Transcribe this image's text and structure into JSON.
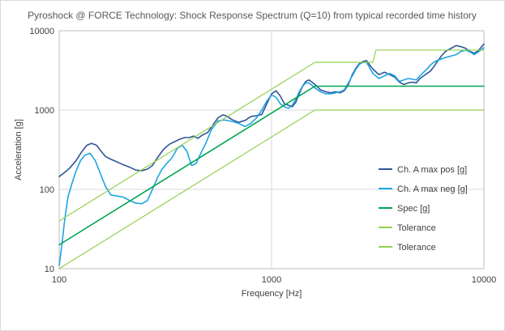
{
  "chart_data": {
    "type": "line",
    "title": "Pyroshock @ FORCE Technology: Shock Response Spectrum (Q=10) from typical recorded time history",
    "xlabel": "Frequency [Hz]",
    "ylabel": "Acceleration [g]",
    "x_scale": "log",
    "y_scale": "log",
    "xlim": [
      100,
      10000
    ],
    "ylim": [
      10,
      10000
    ],
    "x_ticks": [
      "100",
      "1000",
      "10000"
    ],
    "y_ticks": [
      "10",
      "100",
      "1000",
      "10000"
    ],
    "grid": true,
    "legend_position": "right-center",
    "series": [
      {
        "name": "Ch. A max pos [g]",
        "color": "#2f5597",
        "points": [
          [
            100,
            145
          ],
          [
            105,
            160
          ],
          [
            112,
            185
          ],
          [
            120,
            230
          ],
          [
            128,
            300
          ],
          [
            135,
            360
          ],
          [
            142,
            380
          ],
          [
            150,
            360
          ],
          [
            158,
            300
          ],
          [
            165,
            260
          ],
          [
            175,
            240
          ],
          [
            185,
            225
          ],
          [
            200,
            205
          ],
          [
            215,
            190
          ],
          [
            230,
            175
          ],
          [
            245,
            172
          ],
          [
            260,
            180
          ],
          [
            275,
            200
          ],
          [
            290,
            250
          ],
          [
            310,
            320
          ],
          [
            330,
            370
          ],
          [
            350,
            400
          ],
          [
            370,
            430
          ],
          [
            390,
            450
          ],
          [
            410,
            450
          ],
          [
            430,
            470
          ],
          [
            450,
            440
          ],
          [
            470,
            480
          ],
          [
            500,
            520
          ],
          [
            530,
            650
          ],
          [
            560,
            800
          ],
          [
            590,
            870
          ],
          [
            620,
            830
          ],
          [
            650,
            760
          ],
          [
            700,
            700
          ],
          [
            750,
            740
          ],
          [
            800,
            830
          ],
          [
            850,
            850
          ],
          [
            900,
            880
          ],
          [
            950,
            1200
          ],
          [
            1000,
            1600
          ],
          [
            1050,
            1750
          ],
          [
            1100,
            1500
          ],
          [
            1150,
            1200
          ],
          [
            1200,
            1150
          ],
          [
            1250,
            1100
          ],
          [
            1300,
            1250
          ],
          [
            1350,
            1600
          ],
          [
            1400,
            2000
          ],
          [
            1450,
            2300
          ],
          [
            1500,
            2400
          ],
          [
            1550,
            2250
          ],
          [
            1600,
            2100
          ],
          [
            1700,
            1800
          ],
          [
            1800,
            1700
          ],
          [
            1900,
            1650
          ],
          [
            2000,
            1700
          ],
          [
            2100,
            1650
          ],
          [
            2200,
            1750
          ],
          [
            2300,
            2100
          ],
          [
            2400,
            2800
          ],
          [
            2500,
            3400
          ],
          [
            2600,
            3900
          ],
          [
            2700,
            4100
          ],
          [
            2800,
            4200
          ],
          [
            2900,
            3700
          ],
          [
            3000,
            3300
          ],
          [
            3200,
            2800
          ],
          [
            3400,
            3000
          ],
          [
            3600,
            2800
          ],
          [
            3800,
            2600
          ],
          [
            4000,
            2250
          ],
          [
            4200,
            2100
          ],
          [
            4400,
            2200
          ],
          [
            4600,
            2250
          ],
          [
            4800,
            2200
          ],
          [
            5000,
            2500
          ],
          [
            5200,
            2700
          ],
          [
            5400,
            2900
          ],
          [
            5600,
            3100
          ],
          [
            5800,
            3500
          ],
          [
            6000,
            4000
          ],
          [
            6300,
            4800
          ],
          [
            6600,
            5500
          ],
          [
            7000,
            6000
          ],
          [
            7400,
            6500
          ],
          [
            7800,
            6300
          ],
          [
            8200,
            6000
          ],
          [
            8600,
            5500
          ],
          [
            9000,
            5200
          ],
          [
            9400,
            5600
          ],
          [
            10000,
            6800
          ]
        ]
      },
      {
        "name": "Ch. A max neg [g]",
        "color": "#1ea4e3",
        "points": [
          [
            100,
            11
          ],
          [
            103,
            20
          ],
          [
            106,
            40
          ],
          [
            110,
            80
          ],
          [
            115,
            120
          ],
          [
            120,
            170
          ],
          [
            126,
            230
          ],
          [
            132,
            270
          ],
          [
            140,
            285
          ],
          [
            148,
            230
          ],
          [
            156,
            160
          ],
          [
            165,
            110
          ],
          [
            175,
            85
          ],
          [
            185,
            83
          ],
          [
            200,
            80
          ],
          [
            215,
            72
          ],
          [
            230,
            67
          ],
          [
            245,
            66
          ],
          [
            260,
            72
          ],
          [
            275,
            100
          ],
          [
            290,
            140
          ],
          [
            305,
            180
          ],
          [
            320,
            210
          ],
          [
            340,
            250
          ],
          [
            360,
            330
          ],
          [
            380,
            360
          ],
          [
            400,
            300
          ],
          [
            420,
            200
          ],
          [
            440,
            210
          ],
          [
            460,
            270
          ],
          [
            490,
            380
          ],
          [
            520,
            560
          ],
          [
            560,
            730
          ],
          [
            600,
            750
          ],
          [
            650,
            720
          ],
          [
            700,
            680
          ],
          [
            750,
            620
          ],
          [
            800,
            680
          ],
          [
            850,
            800
          ],
          [
            900,
            1000
          ],
          [
            950,
            1300
          ],
          [
            1000,
            1550
          ],
          [
            1050,
            1450
          ],
          [
            1100,
            1200
          ],
          [
            1150,
            1100
          ],
          [
            1200,
            1050
          ],
          [
            1250,
            1150
          ],
          [
            1300,
            1350
          ],
          [
            1350,
            1700
          ],
          [
            1400,
            2000
          ],
          [
            1450,
            2200
          ],
          [
            1500,
            2200
          ],
          [
            1550,
            2050
          ],
          [
            1600,
            1900
          ],
          [
            1700,
            1700
          ],
          [
            1800,
            1600
          ],
          [
            1900,
            1600
          ],
          [
            2000,
            1650
          ],
          [
            2100,
            1700
          ],
          [
            2200,
            1800
          ],
          [
            2300,
            2200
          ],
          [
            2400,
            2700
          ],
          [
            2500,
            3300
          ],
          [
            2600,
            3800
          ],
          [
            2700,
            4000
          ],
          [
            2800,
            4000
          ],
          [
            2900,
            3400
          ],
          [
            3000,
            2900
          ],
          [
            3200,
            2500
          ],
          [
            3400,
            2700
          ],
          [
            3600,
            2900
          ],
          [
            3800,
            2700
          ],
          [
            4000,
            2300
          ],
          [
            4200,
            2400
          ],
          [
            4400,
            2500
          ],
          [
            4600,
            2450
          ],
          [
            4800,
            2400
          ],
          [
            5000,
            2700
          ],
          [
            5200,
            3000
          ],
          [
            5400,
            3300
          ],
          [
            5600,
            3700
          ],
          [
            5800,
            4000
          ],
          [
            6000,
            4200
          ],
          [
            6300,
            4400
          ],
          [
            6600,
            4600
          ],
          [
            7000,
            4800
          ],
          [
            7400,
            5000
          ],
          [
            7800,
            5500
          ],
          [
            8200,
            5700
          ],
          [
            8600,
            5400
          ],
          [
            9000,
            5000
          ],
          [
            9400,
            5400
          ],
          [
            10000,
            6100
          ]
        ]
      },
      {
        "name": "Spec [g]",
        "color": "#00a650",
        "points": [
          [
            100,
            20
          ],
          [
            1600,
            2000
          ],
          [
            10000,
            2000
          ]
        ]
      },
      {
        "name": "Tolerance",
        "color": "#92d050",
        "points": [
          [
            100,
            40
          ],
          [
            1600,
            4000
          ],
          [
            3000,
            4000
          ],
          [
            3100,
            5700
          ],
          [
            10000,
            5700
          ]
        ]
      },
      {
        "name": "Tolerance",
        "color": "#92d050",
        "points": [
          [
            100,
            10
          ],
          [
            1600,
            1000
          ],
          [
            10000,
            1000
          ]
        ]
      }
    ]
  }
}
